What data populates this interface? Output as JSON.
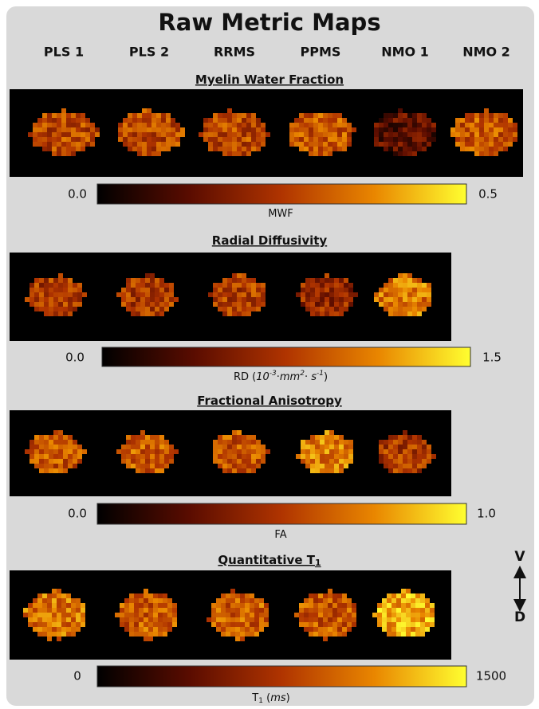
{
  "title": "Raw Metric Maps",
  "columns": [
    "PLS 1",
    "PLS 2",
    "RRMS",
    "PPMS",
    "NMO 1",
    "NMO 2"
  ],
  "panels": [
    {
      "heading": [
        "Myelin Water Fraction"
      ],
      "colorbar": {
        "min": "0.0",
        "max": "0.5",
        "label": [
          "MWF"
        ]
      }
    },
    {
      "heading": [
        "Radial Diffusivity"
      ],
      "colorbar": {
        "min": "0.0",
        "max": "1.5",
        "label": [
          "RD (",
          "10",
          "-3",
          "·",
          "mm",
          "2",
          "· ",
          "s",
          "-1",
          ")"
        ]
      }
    },
    {
      "heading": [
        "Fractional Anisotropy"
      ],
      "colorbar": {
        "min": "0.0",
        "max": "1.0",
        "label": [
          "FA"
        ]
      }
    },
    {
      "heading": [
        "Quantitative T",
        "1"
      ],
      "colorbar": {
        "min": "0",
        "max": "1500",
        "label": [
          "T",
          "1",
          " (",
          "ms",
          ")"
        ]
      }
    }
  ],
  "orientation": {
    "top": "V",
    "bottom": "D"
  }
}
